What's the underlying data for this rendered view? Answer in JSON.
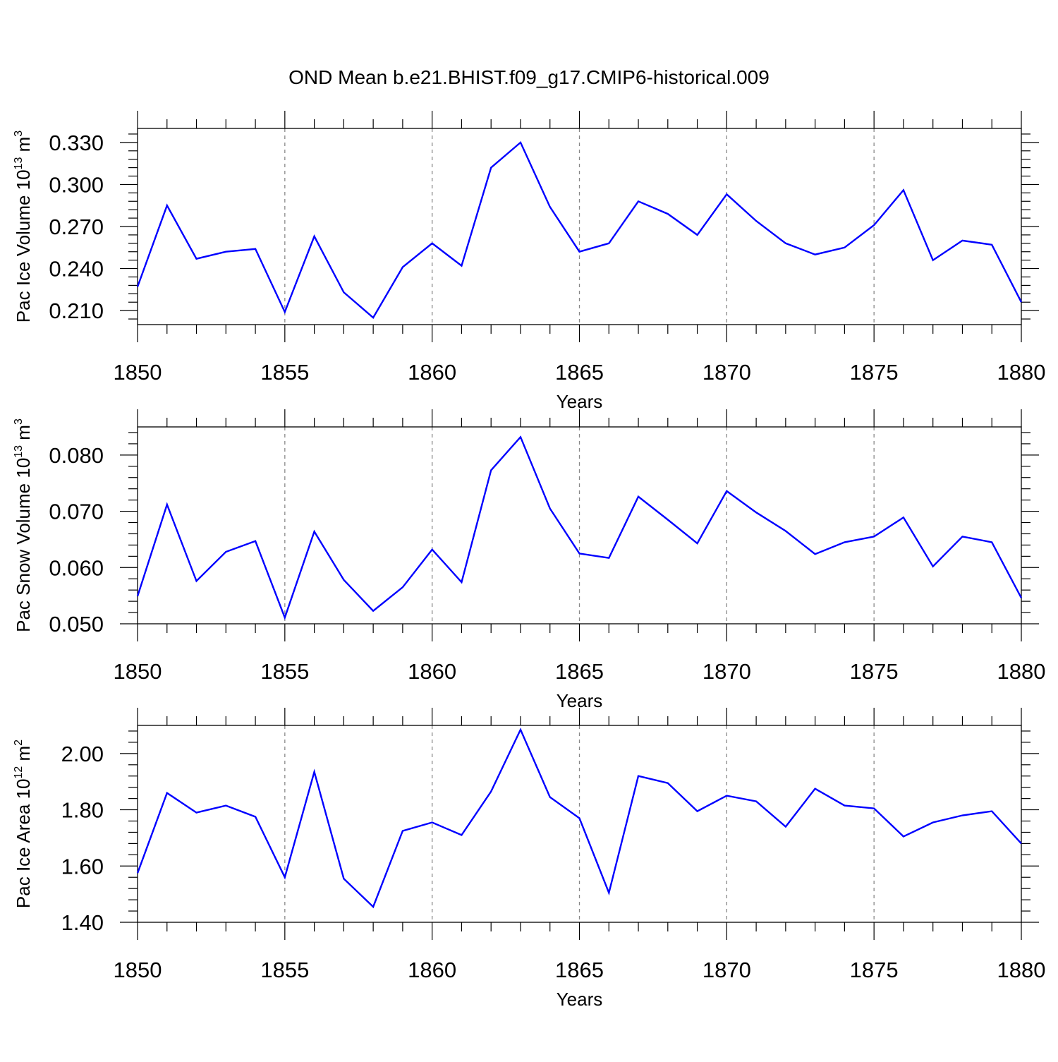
{
  "chart_data": [
    {
      "type": "line",
      "title": "OND Mean b.e21.BHIST.f09_g17.CMIP6-historical.009",
      "ylabel_main": "Pac Ice Volume 10",
      "ylabel_exp": "13",
      "ylabel_unit": " m",
      "ylabel_unit_exp": "3",
      "xlabel": "Years",
      "xlim": [
        1850,
        1880
      ],
      "ylim": [
        0.2,
        0.34
      ],
      "xticks": [
        1850,
        1855,
        1860,
        1865,
        1870,
        1875,
        1880
      ],
      "xtick_labels": [
        "1850",
        "1855",
        "1860",
        "1865",
        "1870",
        "1875",
        "1880"
      ],
      "yticks": [
        0.21,
        0.24,
        0.27,
        0.3,
        0.33
      ],
      "ytick_labels": [
        "0.210",
        "0.240",
        "0.270",
        "0.300",
        "0.330"
      ],
      "grid": "dashed vertical at major x ticks",
      "line_color": "#0000ff",
      "x": [
        1850,
        1851,
        1852,
        1853,
        1854,
        1855,
        1856,
        1857,
        1858,
        1859,
        1860,
        1861,
        1862,
        1863,
        1864,
        1865,
        1866,
        1867,
        1868,
        1869,
        1870,
        1871,
        1872,
        1873,
        1874,
        1875,
        1876,
        1877,
        1878,
        1879,
        1880
      ],
      "values": [
        0.227,
        0.285,
        0.247,
        0.252,
        0.254,
        0.209,
        0.263,
        0.223,
        0.205,
        0.241,
        0.258,
        0.242,
        0.312,
        0.33,
        0.284,
        0.252,
        0.258,
        0.288,
        0.279,
        0.264,
        0.293,
        0.274,
        0.258,
        0.25,
        0.255,
        0.271,
        0.296,
        0.246,
        0.26,
        0.257,
        0.216
      ]
    },
    {
      "type": "line",
      "ylabel_main": "Pac Snow Volume 10",
      "ylabel_exp": "13",
      "ylabel_unit": " m",
      "ylabel_unit_exp": "3",
      "xlabel": "Years",
      "xlim": [
        1850,
        1880
      ],
      "ylim": [
        0.05,
        0.085
      ],
      "xticks": [
        1850,
        1855,
        1860,
        1865,
        1870,
        1875,
        1880
      ],
      "xtick_labels": [
        "1850",
        "1855",
        "1860",
        "1865",
        "1870",
        "1875",
        "1880"
      ],
      "yticks": [
        0.05,
        0.06,
        0.07,
        0.08
      ],
      "ytick_labels": [
        "0.050",
        "0.060",
        "0.070",
        "0.080"
      ],
      "grid": "dashed vertical at major x ticks",
      "line_color": "#0000ff",
      "x": [
        1850,
        1851,
        1852,
        1853,
        1854,
        1855,
        1856,
        1857,
        1858,
        1859,
        1860,
        1861,
        1862,
        1863,
        1864,
        1865,
        1866,
        1867,
        1868,
        1869,
        1870,
        1871,
        1872,
        1873,
        1874,
        1875,
        1876,
        1877,
        1878,
        1879,
        1880
      ],
      "values": [
        0.0549,
        0.0712,
        0.0576,
        0.0628,
        0.0647,
        0.0511,
        0.0664,
        0.0578,
        0.0523,
        0.0565,
        0.0632,
        0.0574,
        0.0773,
        0.0832,
        0.0705,
        0.0625,
        0.0617,
        0.0726,
        0.0685,
        0.0643,
        0.0736,
        0.0698,
        0.0665,
        0.0624,
        0.0645,
        0.0655,
        0.0689,
        0.0602,
        0.0655,
        0.0645,
        0.0546
      ]
    },
    {
      "type": "line",
      "ylabel_main": "Pac Ice Area 10",
      "ylabel_exp": "12",
      "ylabel_unit": " m",
      "ylabel_unit_exp": "2",
      "xlabel": "Years",
      "xlim": [
        1850,
        1880
      ],
      "ylim": [
        1.4,
        2.1
      ],
      "xticks": [
        1850,
        1855,
        1860,
        1865,
        1870,
        1875,
        1880
      ],
      "xtick_labels": [
        "1850",
        "1855",
        "1860",
        "1865",
        "1870",
        "1875",
        "1880"
      ],
      "yticks": [
        1.4,
        1.6,
        1.8,
        2.0
      ],
      "ytick_labels": [
        "1.40",
        "1.60",
        "1.80",
        "2.00"
      ],
      "grid": "dashed vertical at major x ticks",
      "line_color": "#0000ff",
      "x": [
        1850,
        1851,
        1852,
        1853,
        1854,
        1855,
        1856,
        1857,
        1858,
        1859,
        1860,
        1861,
        1862,
        1863,
        1864,
        1865,
        1866,
        1867,
        1868,
        1869,
        1870,
        1871,
        1872,
        1873,
        1874,
        1875,
        1876,
        1877,
        1878,
        1879,
        1880
      ],
      "values": [
        1.575,
        1.86,
        1.79,
        1.815,
        1.775,
        1.56,
        1.935,
        1.555,
        1.455,
        1.725,
        1.755,
        1.71,
        1.865,
        2.085,
        1.845,
        1.77,
        1.505,
        1.92,
        1.895,
        1.795,
        1.85,
        1.83,
        1.74,
        1.875,
        1.815,
        1.805,
        1.705,
        1.755,
        1.78,
        1.795,
        1.68
      ]
    }
  ]
}
